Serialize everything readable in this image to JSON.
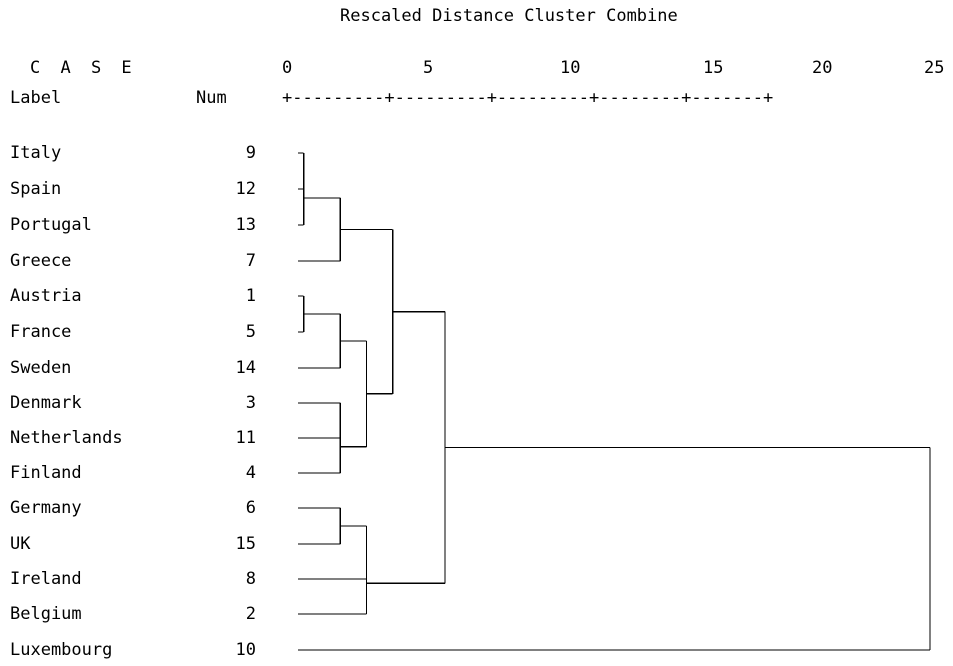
{
  "title": "Rescaled Distance Cluster Combine",
  "case_header": "C A S E",
  "label_header": "Label",
  "num_header": "Num",
  "axis_line": "+---------+---------+---------+--------+-------+",
  "axis_ticks": [
    "0",
    "5",
    "10",
    "15",
    "20",
    "25"
  ],
  "cases": [
    {
      "label": "Italy",
      "num": "9"
    },
    {
      "label": "Spain",
      "num": "12"
    },
    {
      "label": "Portugal",
      "num": "13"
    },
    {
      "label": "Greece",
      "num": "7"
    },
    {
      "label": "Austria",
      "num": "1"
    },
    {
      "label": "France",
      "num": "5"
    },
    {
      "label": "Sweden",
      "num": "14"
    },
    {
      "label": "Denmark",
      "num": "3"
    },
    {
      "label": "Netherlands",
      "num": "11"
    },
    {
      "label": "Finland",
      "num": "4"
    },
    {
      "label": "Germany",
      "num": "6"
    },
    {
      "label": "UK",
      "num": "15"
    },
    {
      "label": "Ireland",
      "num": "8"
    },
    {
      "label": "Belgium",
      "num": "2"
    },
    {
      "label": "Luxembourg",
      "num": "10"
    }
  ],
  "merges": [
    {
      "a": 0,
      "b": 1,
      "distance": 0.6
    },
    {
      "a": 2,
      "b": 15,
      "distance": 0.6
    },
    {
      "a": 4,
      "b": 5,
      "distance": 0.6
    },
    {
      "a": 10,
      "b": 11,
      "distance": 2.0
    },
    {
      "a": 16,
      "b": 3,
      "distance": 2.0
    },
    {
      "a": 17,
      "b": 6,
      "distance": 2.0
    },
    {
      "a": 7,
      "b": 8,
      "distance": 2.0
    },
    {
      "a": 21,
      "b": 9,
      "distance": 2.0
    },
    {
      "a": 20,
      "b": 22,
      "distance": 3.0
    },
    {
      "a": 18,
      "b": 12,
      "distance": 3.0
    },
    {
      "a": 24,
      "b": 13,
      "distance": 3.0
    },
    {
      "a": 19,
      "b": 23,
      "distance": 4.0
    },
    {
      "a": 26,
      "b": 25,
      "distance": 6.0
    },
    {
      "a": 27,
      "b": 14,
      "distance": 25.0
    }
  ],
  "line_color": "#000000"
}
